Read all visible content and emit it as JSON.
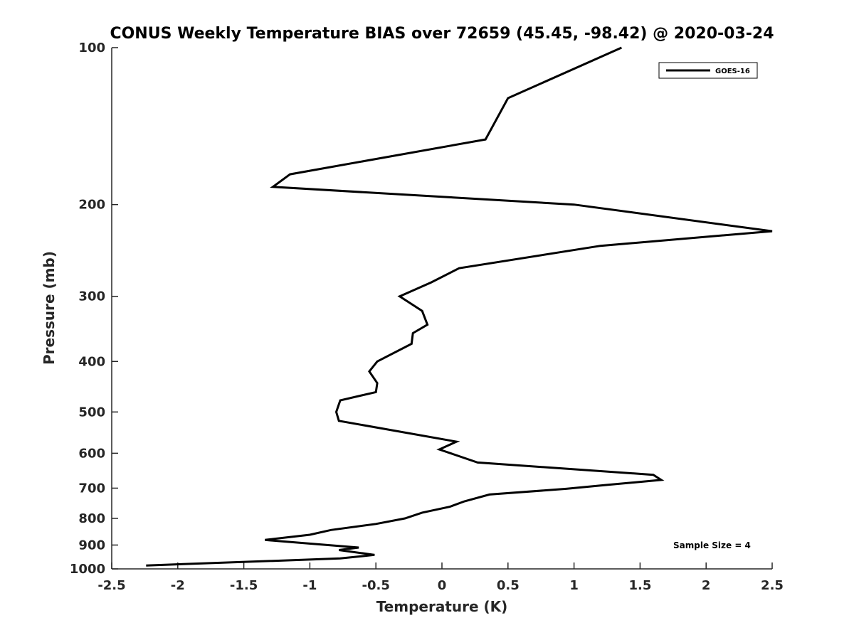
{
  "chart_data": {
    "type": "line",
    "title": "CONUS Weekly Temperature BIAS over 72659 (45.45, -98.42) @ 2020-03-24",
    "xlabel": "Temperature (K)",
    "ylabel": "Pressure (mb)",
    "xlim": [
      -2.5,
      2.5
    ],
    "ylim": [
      1000,
      100
    ],
    "yscale": "log",
    "y_reversed": true,
    "xticks": [
      "-2.5",
      "-2",
      "-1.5",
      "-1",
      "-0.5",
      "0",
      "0.5",
      "1",
      "1.5",
      "2",
      "2.5"
    ],
    "xtick_values": [
      -2.5,
      -2,
      -1.5,
      -1,
      -0.5,
      0,
      0.5,
      1,
      1.5,
      2,
      2.5
    ],
    "yticks": [
      "100",
      "200",
      "300",
      "400",
      "500",
      "600",
      "700",
      "800",
      "900",
      "1000"
    ],
    "ytick_values": [
      100,
      200,
      300,
      400,
      500,
      600,
      700,
      800,
      900,
      1000
    ],
    "grid": false,
    "legend_position": "top-right",
    "series": [
      {
        "name": "GOES-16",
        "color": "#000000",
        "points": [
          {
            "x": 1.36,
            "p": 100
          },
          {
            "x": 0.5,
            "p": 125
          },
          {
            "x": 0.33,
            "p": 150
          },
          {
            "x": -1.15,
            "p": 175
          },
          {
            "x": -1.28,
            "p": 185
          },
          {
            "x": 1.0,
            "p": 200
          },
          {
            "x": 2.5,
            "p": 225
          },
          {
            "x": 1.2,
            "p": 240
          },
          {
            "x": 0.13,
            "p": 265
          },
          {
            "x": -0.08,
            "p": 282
          },
          {
            "x": -0.32,
            "p": 300
          },
          {
            "x": -0.15,
            "p": 320
          },
          {
            "x": -0.11,
            "p": 340
          },
          {
            "x": -0.22,
            "p": 353
          },
          {
            "x": -0.23,
            "p": 370
          },
          {
            "x": -0.49,
            "p": 400
          },
          {
            "x": -0.55,
            "p": 418
          },
          {
            "x": -0.49,
            "p": 440
          },
          {
            "x": -0.5,
            "p": 458
          },
          {
            "x": -0.77,
            "p": 475
          },
          {
            "x": -0.8,
            "p": 500
          },
          {
            "x": -0.78,
            "p": 520
          },
          {
            "x": 0.11,
            "p": 570
          },
          {
            "x": -0.02,
            "p": 590
          },
          {
            "x": 0.27,
            "p": 625
          },
          {
            "x": 1.6,
            "p": 660
          },
          {
            "x": 1.66,
            "p": 675
          },
          {
            "x": 1.25,
            "p": 690
          },
          {
            "x": 0.94,
            "p": 702
          },
          {
            "x": 0.36,
            "p": 720
          },
          {
            "x": 0.17,
            "p": 742
          },
          {
            "x": 0.06,
            "p": 760
          },
          {
            "x": -0.15,
            "p": 780
          },
          {
            "x": -0.28,
            "p": 800
          },
          {
            "x": -0.5,
            "p": 820
          },
          {
            "x": -0.84,
            "p": 842
          },
          {
            "x": -1.0,
            "p": 860
          },
          {
            "x": -1.34,
            "p": 880
          },
          {
            "x": -0.63,
            "p": 910
          },
          {
            "x": -0.78,
            "p": 920
          },
          {
            "x": -0.51,
            "p": 940
          },
          {
            "x": -0.77,
            "p": 955
          },
          {
            "x": -2.24,
            "p": 985
          }
        ]
      }
    ],
    "annotation": "Sample Size = 4"
  }
}
